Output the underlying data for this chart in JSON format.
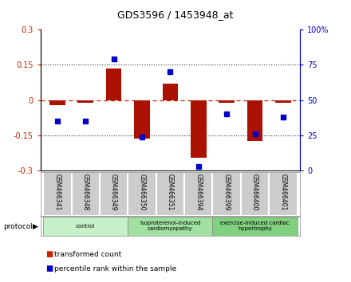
{
  "title": "GDS3596 / 1453948_at",
  "samples": [
    "GSM466341",
    "GSM466348",
    "GSM466349",
    "GSM466350",
    "GSM466351",
    "GSM466394",
    "GSM466399",
    "GSM466400",
    "GSM466401"
  ],
  "transformed_count": [
    -0.02,
    -0.01,
    0.135,
    -0.165,
    0.07,
    -0.245,
    -0.01,
    -0.175,
    -0.01
  ],
  "percentile_rank": [
    35,
    35,
    79,
    24,
    70,
    3,
    40,
    26,
    38
  ],
  "group_colors": [
    "#c8f0c8",
    "#a0e0a0",
    "#80d080"
  ],
  "group_labels": [
    "control",
    "isoproterenol-induced\ncardiomyopathy",
    "exercise-induced cardiac\nhypertrophy"
  ],
  "group_ranges": [
    [
      0,
      2
    ],
    [
      3,
      5
    ],
    [
      6,
      8
    ]
  ],
  "left_ylim": [
    -0.3,
    0.3
  ],
  "right_ylim": [
    0,
    100
  ],
  "left_yticks": [
    -0.3,
    -0.15,
    0,
    0.15,
    0.3
  ],
  "right_yticks": [
    0,
    25,
    50,
    75,
    100
  ],
  "left_yticklabels": [
    "-0.3",
    "-0.15",
    "0",
    "0.15",
    "0.3"
  ],
  "right_yticklabels": [
    "0",
    "25",
    "50",
    "75",
    "100%"
  ],
  "bar_color": "#aa1100",
  "dot_color": "#0000cc",
  "zero_line_color": "#cc2200",
  "grid_color": "#333333",
  "bg_color": "#ffffff",
  "sample_cell_color": "#cccccc",
  "sample_cell_edge": "#ffffff",
  "legend_items": [
    {
      "label": "transformed count",
      "color": "#cc2200"
    },
    {
      "label": "percentile rank within the sample",
      "color": "#0000cc"
    }
  ]
}
